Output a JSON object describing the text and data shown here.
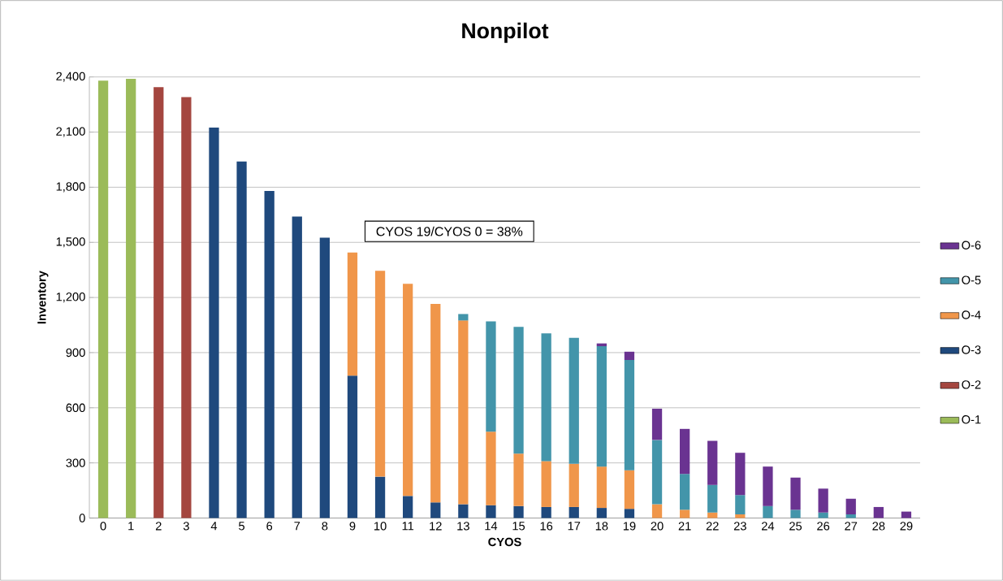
{
  "chart_data": {
    "type": "bar",
    "stacked": true,
    "title": "Nonpilot",
    "xlabel": "CYOS",
    "ylabel": "Inventory",
    "annotations": [
      "CYOS 19/CYOS 0 = 38%"
    ],
    "categories": [
      "0",
      "1",
      "2",
      "3",
      "4",
      "5",
      "6",
      "7",
      "8",
      "9",
      "10",
      "11",
      "12",
      "13",
      "14",
      "15",
      "16",
      "17",
      "18",
      "19",
      "20",
      "21",
      "22",
      "23",
      "24",
      "25",
      "26",
      "27",
      "28",
      "29"
    ],
    "series": [
      {
        "name": "O-1",
        "color": "#9bbb59",
        "values": [
          2380,
          2390,
          null,
          null,
          null,
          null,
          null,
          null,
          null,
          null,
          null,
          null,
          null,
          null,
          null,
          null,
          null,
          null,
          null,
          null,
          null,
          null,
          null,
          null,
          null,
          null,
          null,
          null,
          null,
          null
        ]
      },
      {
        "name": "O-2",
        "color": "#a4463f",
        "values": [
          null,
          null,
          2345,
          2290,
          null,
          null,
          null,
          null,
          null,
          null,
          null,
          null,
          null,
          null,
          null,
          null,
          null,
          null,
          null,
          null,
          null,
          null,
          null,
          null,
          null,
          null,
          null,
          null,
          null,
          null
        ]
      },
      {
        "name": "O-3",
        "color": "#1f497d",
        "values": [
          null,
          null,
          null,
          null,
          2125,
          1940,
          1780,
          1640,
          1525,
          775,
          225,
          120,
          85,
          75,
          70,
          65,
          60,
          60,
          55,
          50,
          null,
          null,
          null,
          null,
          null,
          null,
          null,
          null,
          null,
          null
        ]
      },
      {
        "name": "O-4",
        "color": "#f0964a",
        "values": [
          null,
          null,
          null,
          null,
          null,
          null,
          null,
          null,
          null,
          670,
          1120,
          1155,
          1080,
          1000,
          400,
          285,
          250,
          235,
          225,
          210,
          75,
          45,
          30,
          20,
          null,
          null,
          null,
          null,
          null,
          null
        ]
      },
      {
        "name": "O-5",
        "color": "#4395aa",
        "values": [
          null,
          null,
          null,
          null,
          null,
          null,
          null,
          null,
          null,
          null,
          null,
          null,
          null,
          35,
          600,
          690,
          695,
          685,
          655,
          600,
          350,
          195,
          150,
          105,
          65,
          45,
          30,
          20,
          null,
          null
        ]
      },
      {
        "name": "O-6",
        "color": "#6a3391",
        "values": [
          null,
          null,
          null,
          null,
          null,
          null,
          null,
          null,
          null,
          null,
          null,
          null,
          null,
          null,
          null,
          null,
          null,
          null,
          15,
          45,
          170,
          245,
          240,
          230,
          215,
          175,
          130,
          85,
          60,
          35
        ]
      }
    ],
    "ylim": [
      0,
      2400
    ],
    "yticks": [
      0,
      300,
      600,
      900,
      {
        "value": 1200,
        "label": "1,200"
      },
      {
        "value": 1500,
        "label": "1,500"
      },
      {
        "value": 1800,
        "label": "1,800"
      },
      {
        "value": 2100,
        "label": "2,100"
      },
      {
        "value": 2400,
        "label": "2,400"
      }
    ],
    "grid": "y",
    "legend": "right"
  }
}
